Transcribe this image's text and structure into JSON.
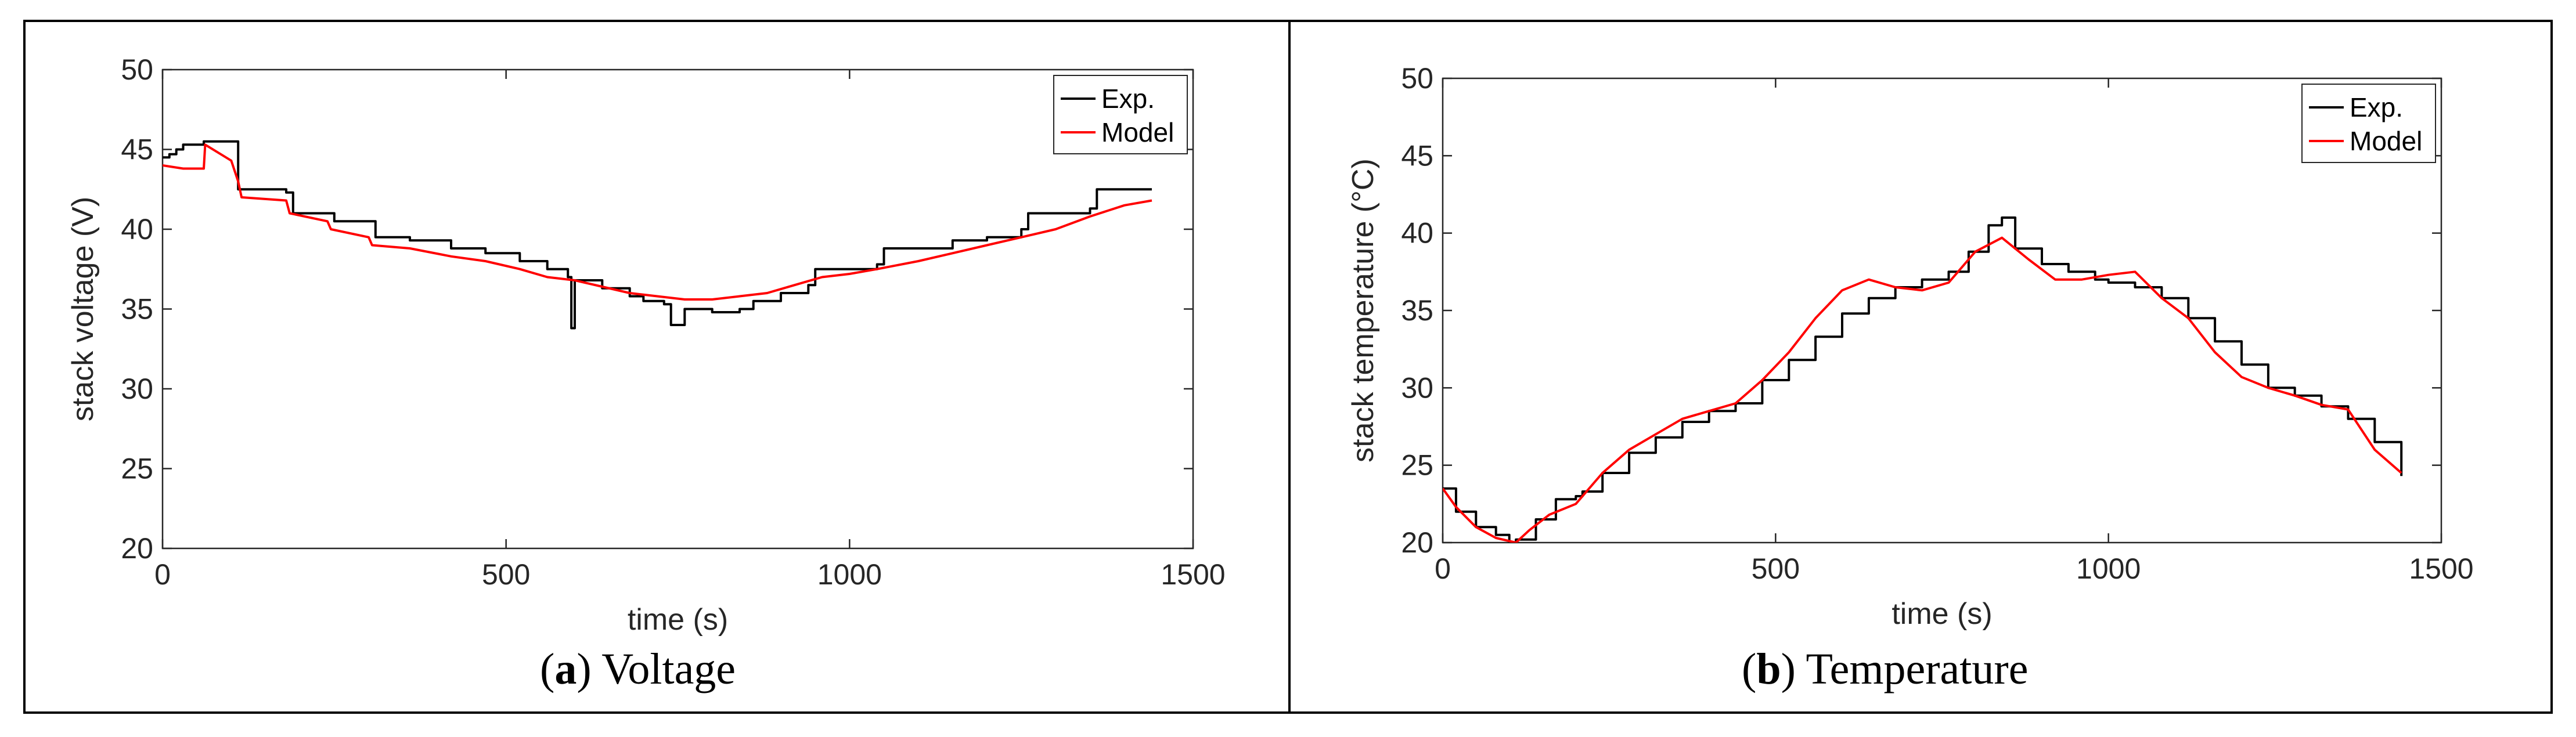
{
  "panels": [
    {
      "caption_letter": "a",
      "caption_text": "Voltage"
    },
    {
      "caption_letter": "b",
      "caption_text": "Temperature"
    }
  ],
  "chart_data": [
    {
      "type": "line",
      "xlabel": "time (s)",
      "ylabel": "stack voltage (V)",
      "xlim": [
        0,
        1500
      ],
      "ylim": [
        20,
        50
      ],
      "xticks": [
        0,
        500,
        1000,
        1500
      ],
      "yticks": [
        20,
        25,
        30,
        35,
        40,
        45,
        50
      ],
      "grid": false,
      "legend_position": "top-right",
      "series": [
        {
          "name": "Exp.",
          "color": "#000000",
          "x": [
            0,
            10,
            20,
            30,
            60,
            100,
            110,
            120,
            180,
            190,
            240,
            250,
            300,
            310,
            360,
            420,
            470,
            520,
            560,
            590,
            595,
            600,
            640,
            680,
            700,
            730,
            740,
            760,
            800,
            840,
            860,
            900,
            940,
            950,
            1000,
            1040,
            1050,
            1100,
            1150,
            1200,
            1250,
            1260,
            1300,
            1350,
            1360,
            1400,
            1440
          ],
          "y": [
            44.5,
            44.7,
            45.0,
            45.3,
            45.5,
            45.5,
            42.5,
            42.5,
            42.3,
            41.0,
            41.0,
            40.5,
            40.5,
            39.5,
            39.3,
            38.8,
            38.5,
            38.0,
            37.5,
            37.0,
            33.8,
            36.8,
            36.3,
            35.8,
            35.5,
            35.3,
            34.0,
            35.0,
            34.8,
            35.0,
            35.5,
            36.0,
            36.5,
            37.5,
            37.5,
            37.8,
            38.8,
            38.8,
            39.3,
            39.5,
            40.0,
            41.0,
            41.0,
            41.3,
            42.5,
            42.5,
            42.5
          ]
        },
        {
          "name": "Model",
          "color": "#ff0000",
          "x": [
            0,
            30,
            60,
            62,
            100,
            110,
            115,
            180,
            185,
            240,
            245,
            300,
            305,
            360,
            420,
            470,
            520,
            560,
            600,
            640,
            680,
            720,
            760,
            800,
            840,
            880,
            920,
            960,
            1000,
            1040,
            1100,
            1150,
            1200,
            1250,
            1300,
            1350,
            1400,
            1440
          ],
          "y": [
            44.0,
            43.8,
            43.8,
            45.3,
            44.3,
            43.0,
            42.0,
            41.8,
            41.0,
            40.5,
            40.0,
            39.5,
            39.0,
            38.8,
            38.3,
            38.0,
            37.5,
            37.0,
            36.8,
            36.4,
            36.0,
            35.8,
            35.6,
            35.6,
            35.8,
            36.0,
            36.5,
            37.0,
            37.2,
            37.5,
            38.0,
            38.5,
            39.0,
            39.5,
            40.0,
            40.8,
            41.5,
            41.8
          ]
        }
      ]
    },
    {
      "type": "line",
      "xlabel": "time (s)",
      "ylabel": "stack temperature (°C)",
      "xlim": [
        0,
        1500
      ],
      "ylim": [
        20,
        50
      ],
      "xticks": [
        0,
        500,
        1000,
        1500
      ],
      "yticks": [
        20,
        25,
        30,
        35,
        40,
        45,
        50
      ],
      "grid": false,
      "legend_position": "top-right",
      "series": [
        {
          "name": "Exp.",
          "color": "#000000",
          "x": [
            0,
            20,
            50,
            80,
            100,
            110,
            140,
            170,
            200,
            210,
            240,
            280,
            320,
            360,
            400,
            440,
            480,
            520,
            560,
            600,
            640,
            680,
            720,
            760,
            790,
            820,
            840,
            860,
            900,
            940,
            980,
            1000,
            1040,
            1080,
            1120,
            1160,
            1200,
            1240,
            1280,
            1320,
            1360,
            1400,
            1440
          ],
          "y": [
            23.5,
            22.0,
            21.0,
            20.5,
            20.0,
            20.2,
            21.5,
            22.8,
            23.0,
            23.3,
            24.5,
            25.8,
            26.8,
            27.8,
            28.5,
            29.0,
            30.5,
            31.8,
            33.3,
            34.8,
            35.8,
            36.5,
            37.0,
            37.5,
            38.8,
            40.5,
            41.0,
            39.0,
            38.0,
            37.5,
            37.0,
            36.8,
            36.5,
            35.8,
            34.5,
            33.0,
            31.5,
            30.0,
            29.5,
            28.8,
            28.0,
            26.5,
            24.3
          ]
        },
        {
          "name": "Model",
          "color": "#ff0000",
          "x": [
            0,
            20,
            50,
            80,
            110,
            130,
            160,
            200,
            240,
            280,
            320,
            360,
            400,
            440,
            480,
            520,
            560,
            600,
            640,
            680,
            720,
            760,
            800,
            840,
            880,
            920,
            960,
            1000,
            1040,
            1080,
            1120,
            1160,
            1200,
            1240,
            1280,
            1320,
            1360,
            1400,
            1440
          ],
          "y": [
            23.5,
            22.3,
            21.0,
            20.3,
            20.0,
            20.8,
            21.8,
            22.5,
            24.5,
            26.0,
            27.0,
            28.0,
            28.5,
            29.0,
            30.5,
            32.3,
            34.5,
            36.3,
            37.0,
            36.5,
            36.3,
            36.8,
            38.8,
            39.7,
            38.3,
            37.0,
            37.0,
            37.3,
            37.5,
            35.8,
            34.5,
            32.3,
            30.7,
            30.0,
            29.5,
            28.9,
            28.6,
            26.0,
            24.5
          ]
        }
      ]
    }
  ]
}
